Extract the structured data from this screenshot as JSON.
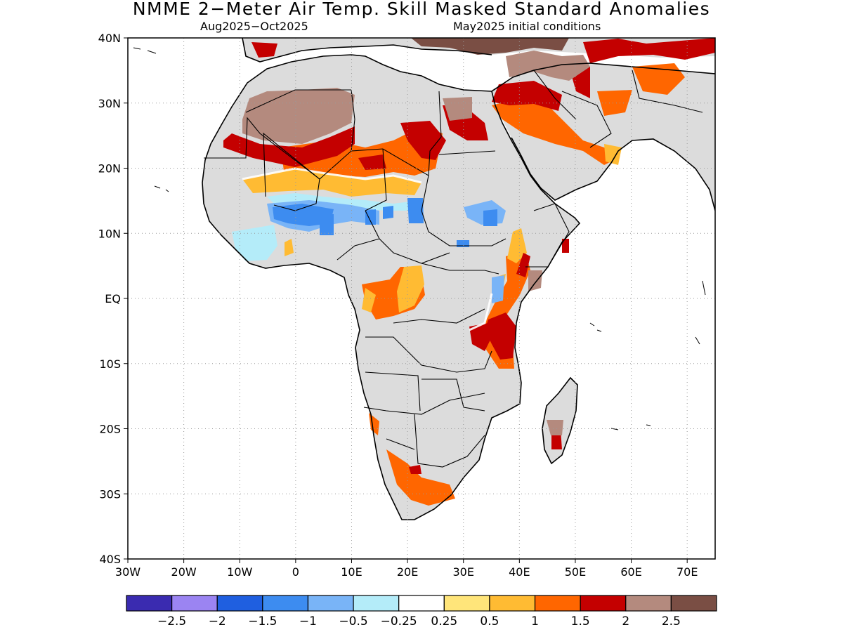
{
  "title": "NMME 2−Meter Air Temp. Skill Masked Standard Anomalies",
  "subtitle_period": "Aug2025−Oct2025",
  "subtitle_ic": "May2025 initial conditions",
  "lat_labels": [
    "40N",
    "30N",
    "20N",
    "10N",
    "EQ",
    "10S",
    "20S",
    "30S",
    "40S"
  ],
  "lon_labels": [
    "30W",
    "20W",
    "10W",
    "0",
    "10E",
    "20E",
    "30E",
    "40E",
    "50E",
    "60E",
    "70E"
  ],
  "colorbar": {
    "colors": [
      "#3a2bb0",
      "#9b84f2",
      "#1f5fe0",
      "#3d8cf0",
      "#79b4f7",
      "#b4ecf9",
      "#ffffff",
      "#ffe57a",
      "#ffbb33",
      "#ff6600",
      "#c40000",
      "#b48a7e",
      "#7a4e44"
    ],
    "labels": [
      "−2.5",
      "−2",
      "−1.5",
      "−1",
      "−0.5",
      "−0.25",
      "0.25",
      "0.5",
      "1",
      "1.5",
      "2",
      "2.5"
    ]
  },
  "map_colors": {
    "land_gray": "#dcdcdc",
    "ocean": "#ffffff",
    "coast": "#000000",
    "grid": "#9a9a9a"
  }
}
